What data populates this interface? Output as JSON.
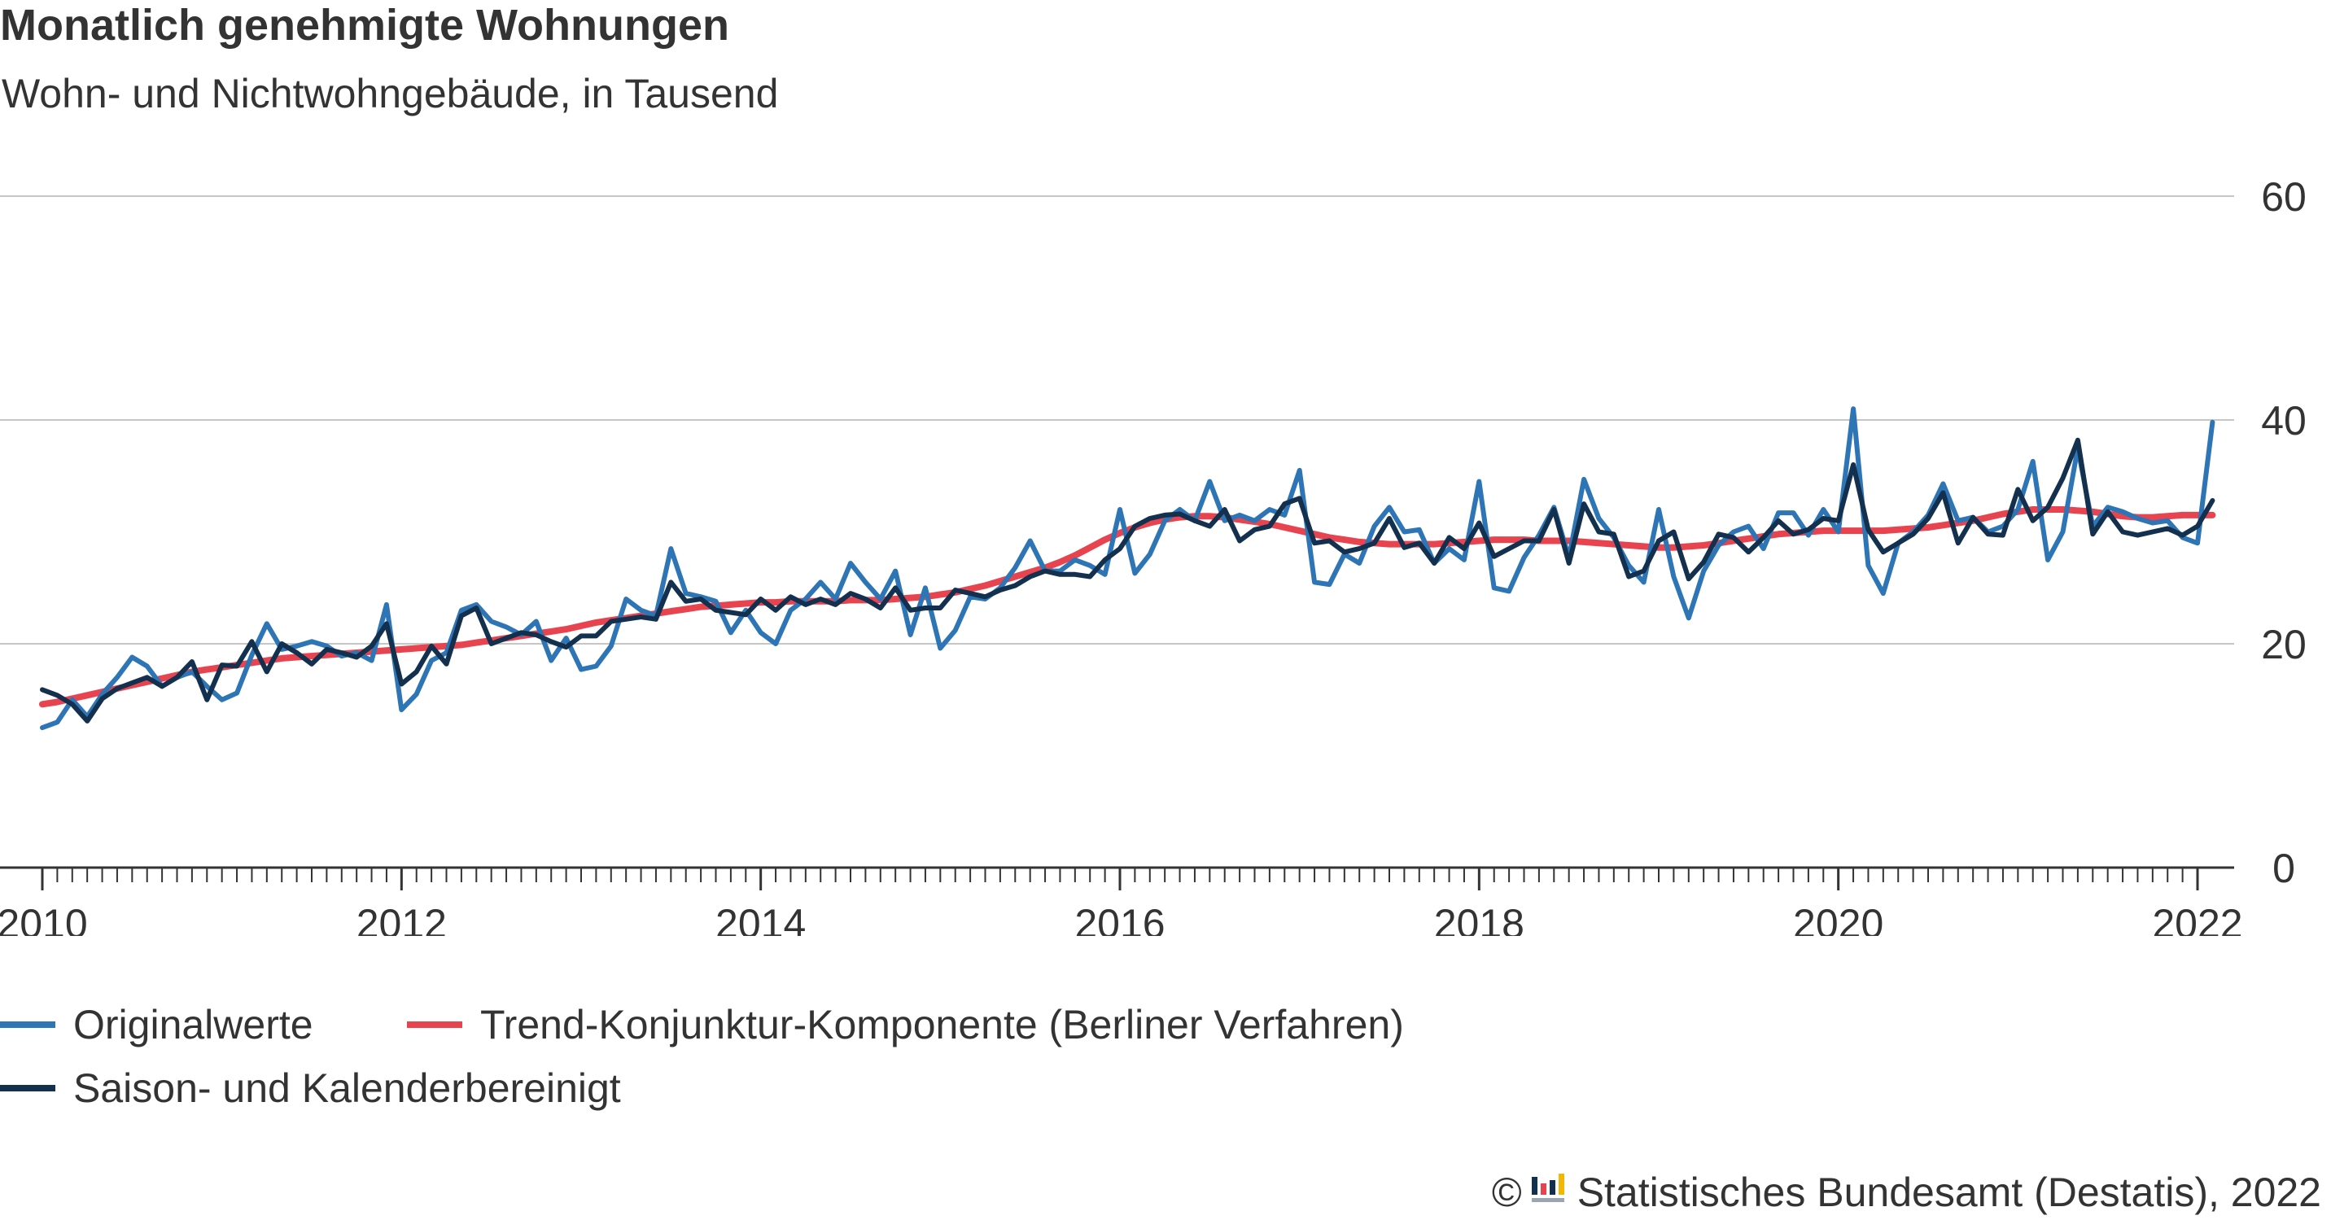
{
  "header": {
    "title": "Monatlich genehmigte Wohnungen",
    "subtitle": "Wohn- und Nichtwohngebäude, in Tausend"
  },
  "footer": {
    "copyright_symbol": "©",
    "source": "Statistisches Bundesamt (Destatis), 2022",
    "logo_icon": "destatis-logo-icon"
  },
  "colors": {
    "original": "#2e75b6",
    "trend": "#e84450",
    "adjusted": "#14304f",
    "grid": "#c6c6c6",
    "axis": "#333333"
  },
  "chart_data": {
    "type": "line",
    "title": "Monatlich genehmigte Wohnungen",
    "subtitle": "Wohn- und Nichtwohngebäude, in Tausend",
    "xlabel": "",
    "ylabel": "",
    "x_start": "2010-01",
    "x_ticks": [
      "2010",
      "2012",
      "2014",
      "2016",
      "2018",
      "2020",
      "2022"
    ],
    "y_ticks": [
      "0",
      "20",
      "40",
      "60"
    ],
    "ylim": [
      0,
      60
    ],
    "xlim": [
      "2010-01",
      "2022-01"
    ],
    "grid": true,
    "y_axis_position": "right",
    "legend_position": "bottom",
    "series": [
      {
        "name": "Originalwerte",
        "color": "#2e75b6",
        "values": [
          12.5,
          13.0,
          15.0,
          13.5,
          15.5,
          17.0,
          18.8,
          18.0,
          16.2,
          17.0,
          17.5,
          16.2,
          15.0,
          15.6,
          19.0,
          21.8,
          19.5,
          19.8,
          20.2,
          19.8,
          18.9,
          19.2,
          18.5,
          23.5,
          14.1,
          15.5,
          18.5,
          19.2,
          23.0,
          23.5,
          22.0,
          21.5,
          20.8,
          22.0,
          18.5,
          20.5,
          17.7,
          18.0,
          19.8,
          24.0,
          23.0,
          22.5,
          28.5,
          24.5,
          24.2,
          23.8,
          21.0,
          23.0,
          21.0,
          20.0,
          23.0,
          24.0,
          25.5,
          24.0,
          27.2,
          25.5,
          24.0,
          26.5,
          20.8,
          25.0,
          19.6,
          21.2,
          24.2,
          24.0,
          25.0,
          26.8,
          29.2,
          26.5,
          26.5,
          27.5,
          27.0,
          26.2,
          32.0,
          26.3,
          28.0,
          31.0,
          32.0,
          31.0,
          34.5,
          31.0,
          31.5,
          31.0,
          32.0,
          31.5,
          35.5,
          25.5,
          25.3,
          28.0,
          27.2,
          30.5,
          32.2,
          30.0,
          30.2,
          27.2,
          28.5,
          27.5,
          34.5,
          25.0,
          24.7,
          27.7,
          29.7,
          32.2,
          27.7,
          34.7,
          31.2,
          29.5,
          27.0,
          25.5,
          32.0,
          26.0,
          22.3,
          26.5,
          28.8,
          30.0,
          30.5,
          28.5,
          31.7,
          31.7,
          29.7,
          32.0,
          30.0,
          41.0,
          27.0,
          24.5,
          29.0,
          30.0,
          31.5,
          34.3,
          31.0,
          31.3,
          30.0,
          30.5,
          32.0,
          36.3,
          27.5,
          30.0,
          37.5,
          30.5,
          32.2,
          31.8,
          31.2,
          30.8,
          31.0,
          29.5,
          29.0,
          39.8
        ]
      },
      {
        "name": "Trend-Konjunktur-Komponente (Berliner Verfahren)",
        "color": "#e84450",
        "values": [
          14.6,
          14.8,
          15.1,
          15.4,
          15.7,
          16.0,
          16.3,
          16.6,
          16.9,
          17.2,
          17.5,
          17.7,
          17.9,
          18.1,
          18.3,
          18.5,
          18.7,
          18.8,
          18.9,
          19.0,
          19.1,
          19.2,
          19.3,
          19.4,
          19.5,
          19.6,
          19.7,
          19.8,
          19.9,
          20.1,
          20.3,
          20.5,
          20.7,
          20.9,
          21.1,
          21.3,
          21.6,
          21.9,
          22.1,
          22.3,
          22.5,
          22.7,
          22.9,
          23.1,
          23.3,
          23.4,
          23.5,
          23.6,
          23.7,
          23.7,
          23.8,
          23.8,
          23.8,
          23.8,
          23.9,
          23.9,
          23.9,
          24.0,
          24.1,
          24.2,
          24.4,
          24.6,
          24.9,
          25.2,
          25.6,
          26.0,
          26.4,
          26.8,
          27.3,
          27.9,
          28.6,
          29.3,
          29.9,
          30.4,
          30.8,
          31.1,
          31.3,
          31.4,
          31.4,
          31.3,
          31.1,
          30.9,
          30.7,
          30.4,
          30.1,
          29.8,
          29.5,
          29.3,
          29.1,
          29.0,
          28.9,
          28.9,
          28.9,
          28.9,
          29.0,
          29.1,
          29.2,
          29.3,
          29.3,
          29.3,
          29.2,
          29.2,
          29.2,
          29.1,
          29.0,
          28.9,
          28.8,
          28.7,
          28.6,
          28.6,
          28.7,
          28.8,
          29.0,
          29.2,
          29.4,
          29.6,
          29.8,
          29.9,
          30.0,
          30.1,
          30.1,
          30.1,
          30.1,
          30.1,
          30.2,
          30.3,
          30.4,
          30.6,
          30.8,
          31.0,
          31.3,
          31.6,
          31.8,
          32.0,
          32.0,
          32.0,
          31.9,
          31.8,
          31.6,
          31.4,
          31.3,
          31.3,
          31.4,
          31.5,
          31.5,
          31.5
        ]
      },
      {
        "name": "Saison- und Kalenderbereinigt",
        "color": "#14304f",
        "values": [
          15.9,
          15.4,
          14.6,
          13.1,
          15.1,
          16.0,
          16.5,
          17.0,
          16.2,
          17.0,
          18.4,
          15.0,
          18.1,
          18.0,
          20.2,
          17.5,
          20.0,
          19.2,
          18.2,
          19.5,
          19.2,
          18.8,
          19.8,
          21.8,
          16.4,
          17.5,
          19.8,
          18.2,
          22.5,
          23.2,
          20.0,
          20.5,
          21.0,
          20.8,
          20.2,
          19.7,
          20.7,
          20.7,
          22.0,
          22.2,
          22.4,
          22.2,
          25.5,
          23.8,
          24.0,
          23.0,
          22.8,
          22.6,
          24.0,
          23.0,
          24.2,
          23.5,
          24.0,
          23.5,
          24.5,
          24.0,
          23.2,
          25.0,
          23.0,
          23.2,
          23.2,
          24.8,
          24.5,
          24.2,
          24.8,
          25.2,
          26.0,
          26.5,
          26.2,
          26.2,
          26.0,
          27.5,
          28.5,
          30.5,
          31.2,
          31.5,
          31.6,
          31.0,
          30.5,
          32.0,
          29.2,
          30.2,
          30.5,
          32.5,
          33.0,
          29.0,
          29.2,
          28.2,
          28.5,
          29.0,
          31.2,
          28.6,
          29.0,
          27.2,
          29.5,
          28.5,
          30.8,
          27.8,
          28.5,
          29.2,
          29.2,
          32.0,
          27.2,
          32.5,
          30.0,
          29.8,
          26.0,
          26.5,
          29.2,
          30.0,
          25.8,
          27.3,
          29.8,
          29.5,
          28.2,
          29.5,
          31.0,
          29.8,
          30.2,
          31.2,
          31.0,
          36.0,
          30.2,
          28.2,
          29.0,
          29.8,
          31.2,
          33.5,
          29.0,
          31.3,
          29.8,
          29.7,
          33.8,
          31.0,
          32.2,
          34.8,
          38.2,
          29.8,
          31.8,
          30.0,
          29.7,
          30.0,
          30.3,
          29.7,
          30.5,
          32.8
        ]
      }
    ]
  }
}
